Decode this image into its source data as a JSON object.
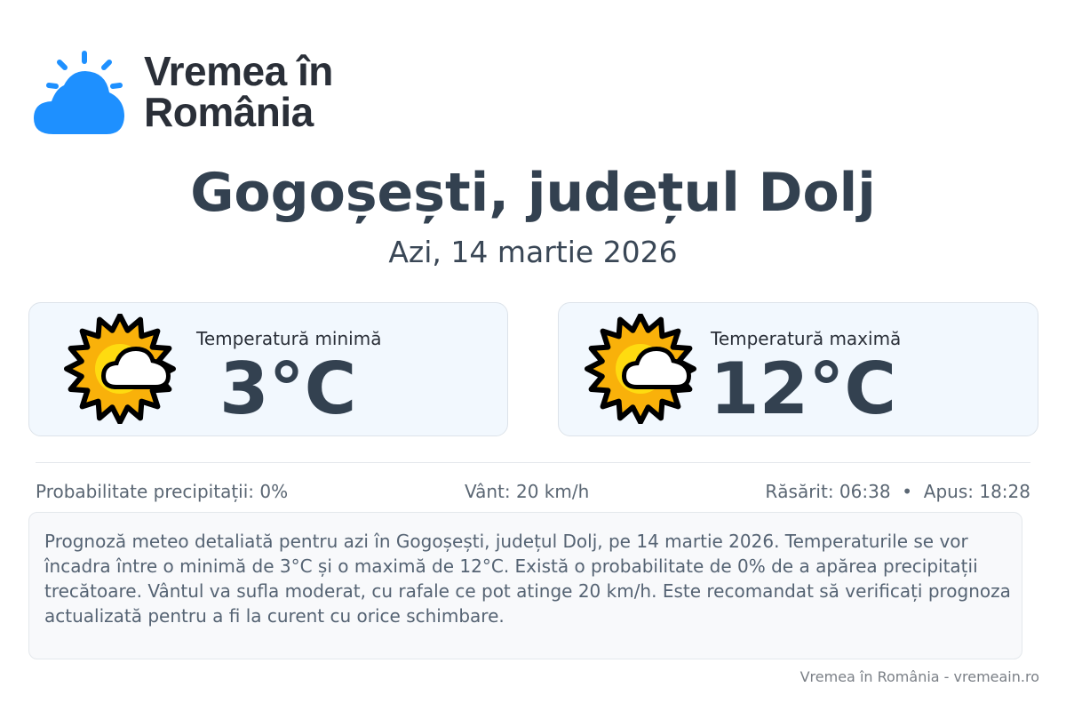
{
  "logo": {
    "line1": "Vremea în",
    "line2": "România",
    "color": "#1e90ff"
  },
  "header": {
    "title": "Gogoșești, județul Dolj",
    "date": "Azi, 14 martie 2026"
  },
  "cards": [
    {
      "label": "Temperatură minimă",
      "value": "3°C",
      "icon": "partly-sunny-icon"
    },
    {
      "label": "Temperatură maximă",
      "value": "12°C",
      "icon": "partly-sunny-icon"
    }
  ],
  "stats": {
    "precip": "Probabilitate precipitații: 0%",
    "wind": "Vânt: 20 km/h",
    "sun": "Răsărit: 06:38  •  Apus: 18:28"
  },
  "description": "Prognoză meteo detaliată pentru azi în Gogoșești, județul Dolj, pe 14 martie 2026. Temperaturile se vor încadra între o minimă de 3°C și o maximă de 12°C. Există o probabilitate de 0% de a apărea precipitații trecătoare. Vântul va sufla moderat, cu rafale ce pot atinge 20 km/h. Este recomandat să verificați prognoza actualizată pentru a fi la curent cu orice schimbare.",
  "footer": "Vremea în România - vremeain.ro"
}
